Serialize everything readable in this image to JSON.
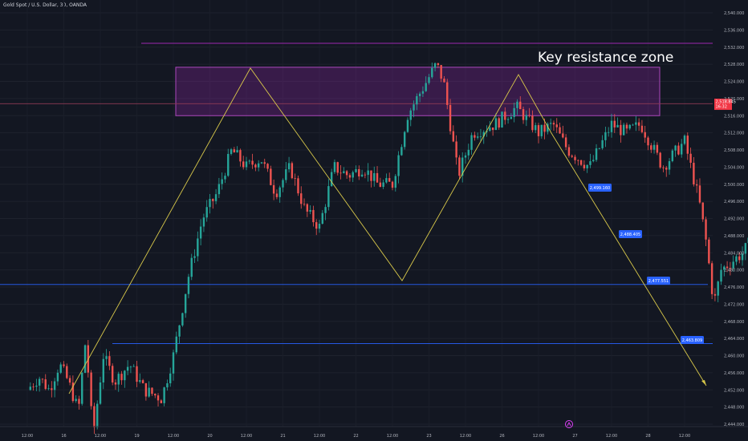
{
  "header": {
    "symbol_title": "Gold Spot / U.S. Dollar, 30, OANDA"
  },
  "annotation": {
    "text": "Key resistance zone"
  },
  "colors": {
    "background": "#131722",
    "bull": "#26a69a",
    "bear": "#ef5350",
    "zigzag": "#d8c84a",
    "zone_fill": "rgba(156,39,176,0.28)",
    "zone_border": "#ab47bc",
    "level_line": "#2962ff",
    "price_tag": "#2962ff",
    "current_price_tag": "#f23645"
  },
  "chart_data": {
    "type": "candlestick",
    "symbol": "Gold Spot / U.S. Dollar",
    "interval": "30",
    "source": "OANDA",
    "ylim": [
      2442,
      2542
    ],
    "y_ticks": [
      "2,444.000",
      "2,448.000",
      "2,452.000",
      "2,456.000",
      "2,460.000",
      "2,464.000",
      "2,468.000",
      "2,472.000",
      "2,476.000",
      "2,480.000",
      "2,484.000",
      "2,488.000",
      "2,492.000",
      "2,496.000",
      "2,500.000",
      "2,504.000",
      "2,508.000",
      "2,512.000",
      "2,516.000",
      "2,520.000",
      "2,524.000",
      "2,528.000",
      "2,532.000",
      "2,536.000",
      "2,540.000"
    ],
    "x_ticks": [
      "12:00",
      "16",
      "12:00",
      "19",
      "12:00",
      "20",
      "12:00",
      "21",
      "12:00",
      "22",
      "12:00",
      "23",
      "12:00",
      "26",
      "12:00",
      "27",
      "12:00",
      "28",
      "12:00"
    ],
    "current_price": "2,518.845",
    "current_price_countdown": "16:32",
    "price_tags": [
      "2,499.160",
      "2,488.405",
      "2,477.551",
      "2,463.809"
    ],
    "resistance_zone": {
      "low": 2516.0,
      "high": 2527.3,
      "top_line": 2532.9,
      "mid_line": 2518.8
    },
    "horizontal_levels": [
      2476.6,
      2462.8
    ],
    "zigzag_path": [
      {
        "x": "16 ~02:00",
        "y": 2450.6
      },
      {
        "x": "20 ~12:00",
        "y": 2527.3
      },
      {
        "x": "22 ~20:00",
        "y": 2476.6
      },
      {
        "x": "26 ~06:00",
        "y": 2525.8
      },
      {
        "x": "26 ~20:00",
        "y": 2512.0
      },
      {
        "x": "28 ~18:00",
        "y": 2452.0
      }
    ],
    "price_path": [
      [
        15.5,
        2452
      ],
      [
        15.58,
        2455
      ],
      [
        15.65,
        2452
      ],
      [
        15.72,
        2458
      ],
      [
        15.78,
        2454
      ],
      [
        15.85,
        2447
      ],
      [
        15.9,
        2464
      ],
      [
        15.95,
        2441
      ],
      [
        16.02,
        2460
      ],
      [
        16.1,
        2454
      ],
      [
        16.2,
        2458
      ],
      [
        16.3,
        2452
      ],
      [
        16.42,
        2450
      ],
      [
        16.5,
        2460
      ],
      [
        16.6,
        2478
      ],
      [
        16.7,
        2492
      ],
      [
        16.8,
        2498
      ],
      [
        16.9,
        2508
      ],
      [
        17.0,
        2504
      ],
      [
        17.1,
        2506
      ],
      [
        17.2,
        2498
      ],
      [
        17.3,
        2504
      ],
      [
        17.4,
        2494
      ],
      [
        17.5,
        2490
      ],
      [
        17.6,
        2504
      ],
      [
        17.7,
        2502
      ],
      [
        17.8,
        2504
      ],
      [
        17.9,
        2500
      ],
      [
        18.0,
        2500
      ],
      [
        18.1,
        2516
      ],
      [
        18.2,
        2522
      ],
      [
        18.3,
        2528
      ],
      [
        18.35,
        2524
      ],
      [
        18.45,
        2502
      ],
      [
        18.55,
        2512
      ],
      [
        18.7,
        2514
      ],
      [
        18.85,
        2518
      ],
      [
        19.0,
        2512
      ],
      [
        19.1,
        2514
      ],
      [
        19.2,
        2508
      ],
      [
        19.35,
        2504
      ],
      [
        19.5,
        2514
      ],
      [
        19.6,
        2512
      ],
      [
        19.7,
        2514
      ],
      [
        19.85,
        2504
      ],
      [
        20.0,
        2510
      ],
      [
        20.1,
        2496
      ],
      [
        20.15,
        2486
      ],
      [
        20.2,
        2472
      ],
      [
        20.25,
        2480
      ],
      [
        20.4,
        2484
      ],
      [
        20.55,
        2492
      ],
      [
        20.7,
        2496
      ],
      [
        20.85,
        2504
      ],
      [
        21.0,
        2512
      ],
      [
        21.1,
        2516
      ],
      [
        21.2,
        2512
      ],
      [
        21.3,
        2514
      ],
      [
        21.4,
        2510
      ],
      [
        21.5,
        2520
      ],
      [
        21.6,
        2526
      ],
      [
        21.7,
        2522
      ],
      [
        21.75,
        2514
      ],
      [
        21.8,
        2516
      ],
      [
        21.9,
        2519
      ]
    ],
    "candles_note": "30-minute OHLC candles rendered along price_path"
  }
}
